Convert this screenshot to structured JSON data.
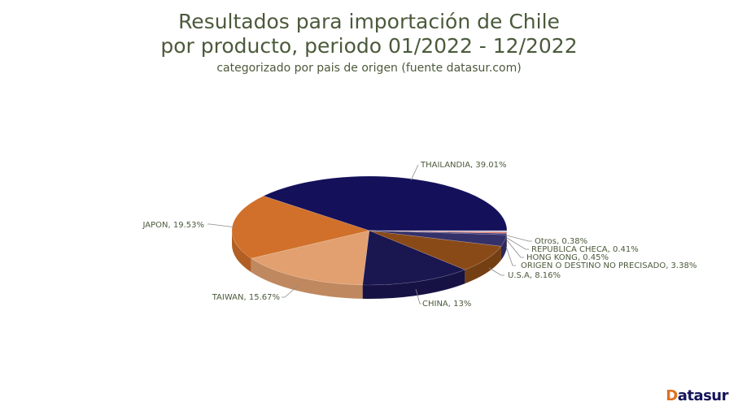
{
  "title": {
    "line1": "Resultados para importación de Chile",
    "line2": "por producto, periodo 01/2022 - 12/2022",
    "subtitle": "categorizado por pais de origen (fuente datasur.com)"
  },
  "logo": {
    "first": "D",
    "rest": "atasur"
  },
  "chart_data": {
    "type": "pie",
    "title": "Resultados para importación de Chile por producto, periodo 01/2022 - 12/2022",
    "subtitle": "categorizado por pais de origen (fuente datasur.com)",
    "style": "3d",
    "categories": [
      "THAILANDIA",
      "JAPON",
      "TAIWAN",
      "CHINA",
      "U.S.A",
      "ORIGEN O DESTINO NO PRECISADO",
      "HONG KONG",
      "REPUBLICA CHECA",
      "Otros"
    ],
    "values": [
      39.01,
      19.53,
      15.67,
      13,
      8.16,
      3.38,
      0.45,
      0.41,
      0.38
    ],
    "labels": [
      "THAILANDIA, 39.01%",
      "JAPON, 19.53%",
      "TAIWAN, 15.67%",
      "CHINA, 13%",
      "U.S.A, 8.16%",
      "ORIGEN O DESTINO NO PRECISADO, 3.38%",
      "HONG KONG, 0.45%",
      "REPUBLICA CHECA, 0.41%",
      "Otros, 0.38%"
    ],
    "colors": [
      "#14105a",
      "#d0702a",
      "#e2a070",
      "#1a1650",
      "#8a4a18",
      "#34306a",
      "#3a3878",
      "#e07868",
      "#c8c8e0"
    ],
    "legend": "none (data labels with leader lines)"
  }
}
